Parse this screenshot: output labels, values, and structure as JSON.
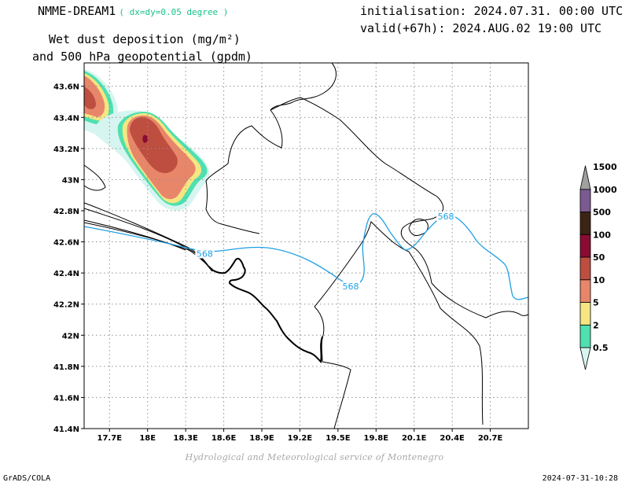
{
  "header": {
    "model_name": "NMME-DREAM1",
    "model_resolution": "( dx=dy=0.05 degree )",
    "initialisation": "initialisation: 2024.07.31. 00:00 UTC",
    "valid": "valid(+67h): 2024.AUG.02 19:00 UTC",
    "title_line1": "Wet dust deposition (mg/m²)",
    "title_line2": "and 500 hPa geopotential (gpdm)"
  },
  "footer": {
    "credit": "Hydrological and Meteorological service of Montenegro",
    "software": "GrADS/COLA",
    "timestamp": "2024-07-31-10:28"
  },
  "map": {
    "lon_range": [
      17.5,
      21.0
    ],
    "lat_range": [
      41.4,
      43.75
    ],
    "lon_ticks": [
      "17.7E",
      "18E",
      "18.3E",
      "18.6E",
      "18.9E",
      "19.2E",
      "19.5E",
      "19.8E",
      "20.1E",
      "20.4E",
      "20.7E"
    ],
    "lon_tick_values": [
      17.7,
      18.0,
      18.3,
      18.6,
      18.9,
      19.2,
      19.5,
      19.8,
      20.1,
      20.4,
      20.7
    ],
    "lat_ticks": [
      "41.4N",
      "41.6N",
      "41.8N",
      "42N",
      "42.2N",
      "42.4N",
      "42.6N",
      "42.8N",
      "43N",
      "43.2N",
      "43.4N",
      "43.6N"
    ],
    "lat_tick_values": [
      41.4,
      41.6,
      41.8,
      42.0,
      42.2,
      42.4,
      42.6,
      42.8,
      43.0,
      43.2,
      43.4,
      43.6
    ],
    "grid": true,
    "geopotential_contour_label": "568",
    "geopotential_contour_color": "#1ea0e6",
    "geopotential_label_positions": [
      {
        "lon": 18.45,
        "lat": 42.51
      },
      {
        "lon": 19.6,
        "lat": 42.3
      },
      {
        "lon": 20.35,
        "lat": 42.75
      }
    ]
  },
  "colorbar": {
    "labels": [
      "0.5",
      "2",
      "5",
      "10",
      "50",
      "100",
      "500",
      "1000",
      "1500"
    ],
    "colors": [
      "#d7f5f0",
      "#4fe0b0",
      "#f5e682",
      "#e8866a",
      "#bd4e40",
      "#8a0c32",
      "#3c2414",
      "#7a5a90",
      "#a0a0a0"
    ]
  }
}
